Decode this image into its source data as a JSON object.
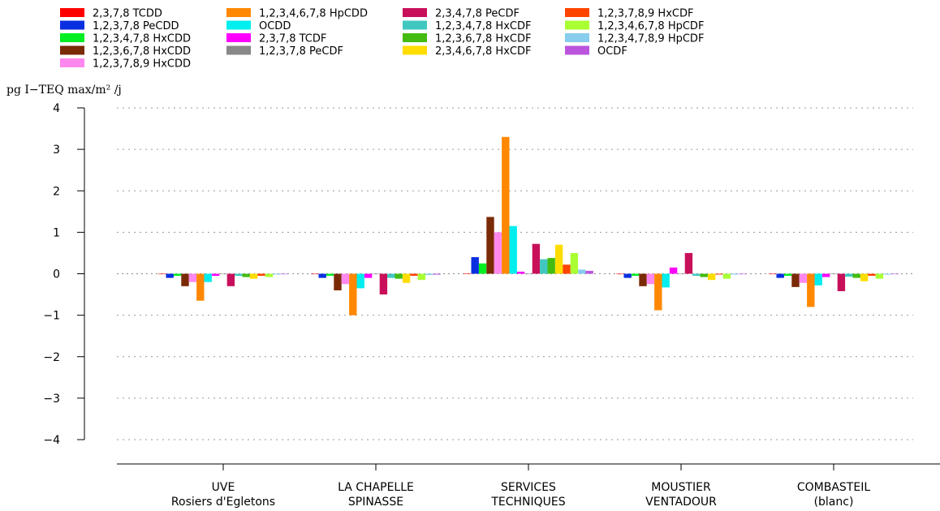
{
  "chart_data": {
    "type": "bar",
    "title": "",
    "xlabel": "",
    "ylabel": "pg I−TEQ max/m² /j",
    "ylim": [
      -4,
      4
    ],
    "yticks": [
      4,
      3,
      2,
      1,
      0,
      -1,
      -2,
      -3,
      -4
    ],
    "ytick_labels": [
      "4",
      "3",
      "2",
      "1",
      "0",
      "−1",
      "−2",
      "−3",
      "−4"
    ],
    "grid": "horizontal-dotted",
    "legend_position": "top",
    "categories": [
      [
        "UVE",
        "Rosiers d'Egletons"
      ],
      [
        "LA CHAPELLE",
        "SPINASSE"
      ],
      [
        "SERVICES",
        "TECHNIQUES"
      ],
      [
        "MOUSTIER",
        "VENTADOUR"
      ],
      [
        "COMBASTEIL",
        "(blanc)"
      ]
    ],
    "series": [
      {
        "name": "2,3,7,8 TCDD",
        "color": "#ff0000",
        "values": [
          0,
          0,
          0.01,
          0,
          0
        ]
      },
      {
        "name": "1,2,3,7,8 PeCDD",
        "color": "#0a2fe0",
        "values": [
          -0.1,
          -0.1,
          0.4,
          -0.1,
          -0.1
        ]
      },
      {
        "name": "1,2,3,4,7,8 HxCDD",
        "color": "#00ee22",
        "values": [
          -0.05,
          -0.05,
          0.25,
          -0.05,
          -0.05
        ]
      },
      {
        "name": "1,2,3,6,7,8 HxCDD",
        "color": "#7a2a05",
        "values": [
          -0.3,
          -0.4,
          1.37,
          -0.3,
          -0.32
        ]
      },
      {
        "name": "1,2,3,7,8,9 HxCDD",
        "color": "#ff88ee",
        "values": [
          -0.2,
          -0.25,
          1.0,
          -0.25,
          -0.22
        ]
      },
      {
        "name": "1,2,3,4,6,7,8 HpCDD",
        "color": "#ff8800",
        "values": [
          -0.65,
          -1.0,
          3.3,
          -0.88,
          -0.8
        ]
      },
      {
        "name": "OCDD",
        "color": "#00eeee",
        "values": [
          -0.2,
          -0.35,
          1.15,
          -0.33,
          -0.28
        ]
      },
      {
        "name": "2,3,7,8 TCDF",
        "color": "#ff00ff",
        "values": [
          -0.05,
          -0.1,
          0.05,
          0.15,
          -0.08
        ]
      },
      {
        "name": "1,2,3,7,8 PeCDF",
        "color": "#888888",
        "values": [
          0,
          0,
          0,
          0,
          0
        ]
      },
      {
        "name": "2,3,4,7,8 PeCDF",
        "color": "#c8105a",
        "values": [
          -0.3,
          -0.5,
          0.72,
          0.5,
          -0.42
        ]
      },
      {
        "name": "1,2,3,4,7,8 HxCDF",
        "color": "#40c8c0",
        "values": [
          -0.05,
          -0.1,
          0.35,
          -0.05,
          -0.07
        ]
      },
      {
        "name": "1,2,3,6,7,8 HxCDF",
        "color": "#44bb11",
        "values": [
          -0.08,
          -0.12,
          0.38,
          -0.08,
          -0.1
        ]
      },
      {
        "name": "2,3,4,6,7,8 HxCDF",
        "color": "#ffdd00",
        "values": [
          -0.12,
          -0.22,
          0.7,
          -0.15,
          -0.18
        ]
      },
      {
        "name": "1,2,3,7,8,9 HxCDF",
        "color": "#ff4400",
        "values": [
          -0.05,
          -0.05,
          0.22,
          -0.02,
          -0.05
        ]
      },
      {
        "name": "1,2,3,4,6,7,8 HpCDF",
        "color": "#aaff33",
        "values": [
          -0.08,
          -0.15,
          0.5,
          -0.12,
          -0.12
        ]
      },
      {
        "name": "1,2,3,4,7,8,9 HpCDF",
        "color": "#88ccee",
        "values": [
          -0.02,
          -0.03,
          0.1,
          -0.02,
          -0.02
        ]
      },
      {
        "name": "OCDF",
        "color": "#bb55dd",
        "values": [
          -0.01,
          -0.02,
          0.07,
          -0.01,
          -0.01
        ]
      }
    ]
  }
}
